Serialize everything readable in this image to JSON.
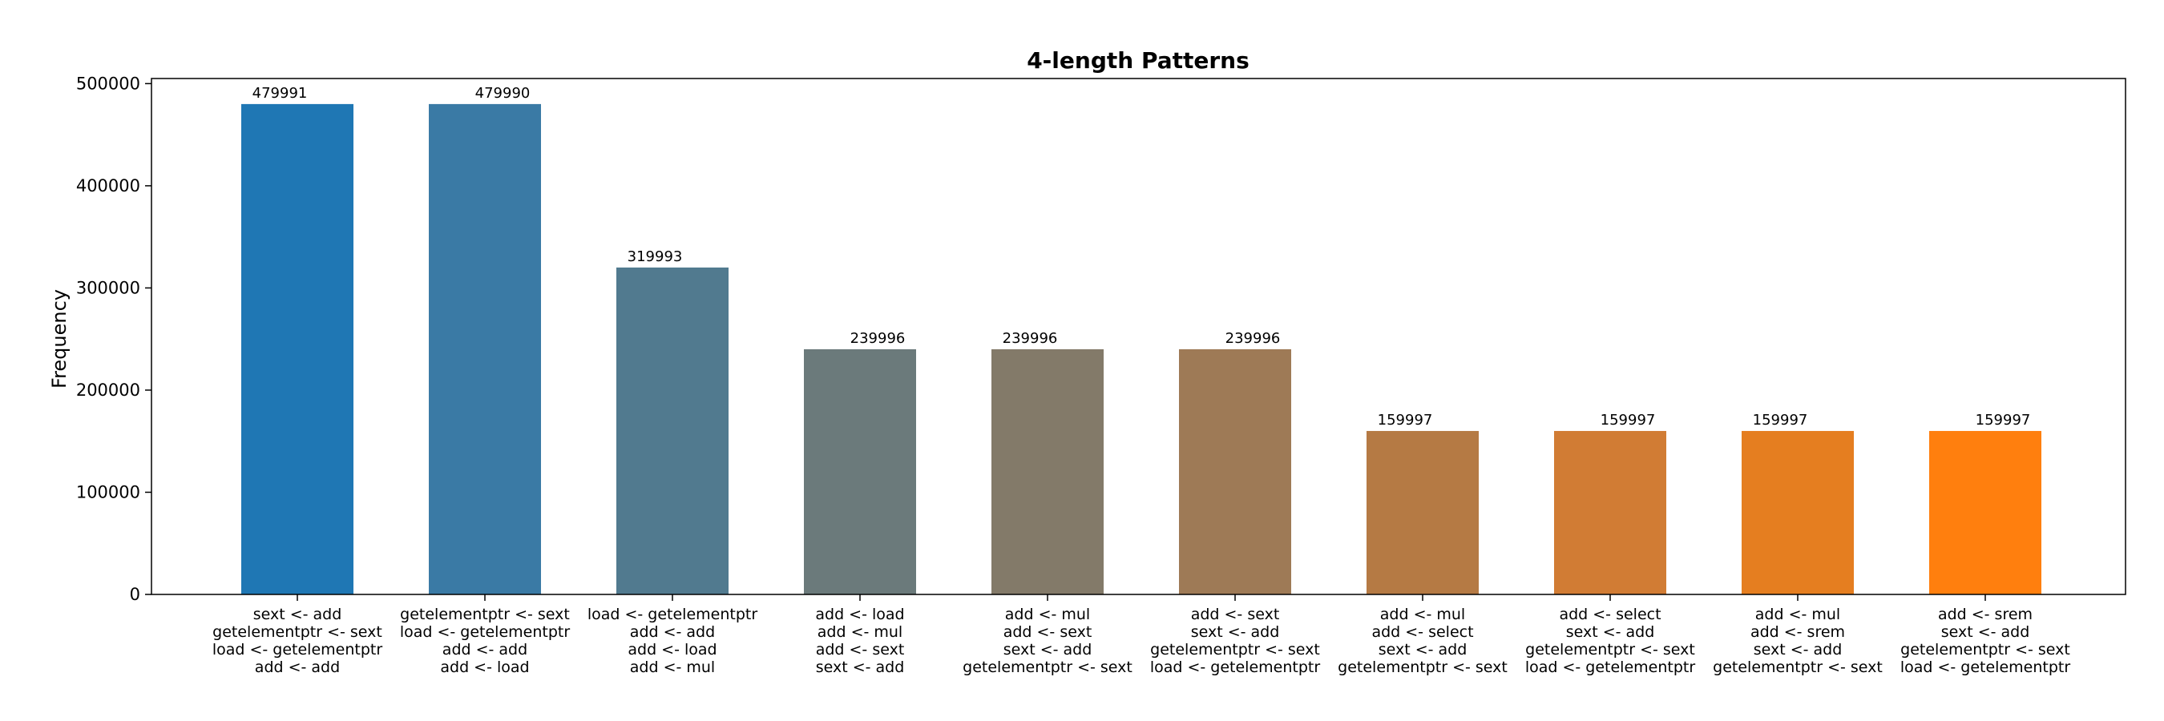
{
  "chart_data": {
    "type": "bar",
    "title": "4-length Patterns",
    "xlabel": "",
    "ylabel": "Frequency",
    "ylim": [
      0,
      505000
    ],
    "yticks": [
      0,
      100000,
      200000,
      300000,
      400000,
      500000
    ],
    "ytick_labels": [
      "0",
      "100000",
      "200000",
      "300000",
      "400000",
      "500000"
    ],
    "grid": false,
    "categories": [
      [
        "sext <- add",
        "getelementptr <- sext",
        "load <- getelementptr",
        "add <- add"
      ],
      [
        "getelementptr <- sext",
        "load <- getelementptr",
        "add <- add",
        "add <- load"
      ],
      [
        "load <- getelementptr",
        "add <- add",
        "add <- load",
        "add <- mul"
      ],
      [
        "add <- load",
        "add <- mul",
        "add <- sext",
        "sext <- add"
      ],
      [
        "add <- mul",
        "add <- sext",
        "sext <- add",
        "getelementptr <- sext"
      ],
      [
        "add <- sext",
        "sext <- add",
        "getelementptr <- sext",
        "load <- getelementptr"
      ],
      [
        "add <- mul",
        "add <- select",
        "sext <- add",
        "getelementptr <- sext"
      ],
      [
        "add <- select",
        "sext <- add",
        "getelementptr <- sext",
        "load <- getelementptr"
      ],
      [
        "add <- mul",
        "add <- srem",
        "sext <- add",
        "getelementptr <- sext"
      ],
      [
        "add <- srem",
        "sext <- add",
        "getelementptr <- sext",
        "load <- getelementptr"
      ]
    ],
    "values": [
      479991,
      479990,
      319993,
      239996,
      239996,
      239996,
      159997,
      159997,
      159997,
      159997
    ],
    "data_labels": [
      "479991",
      "479990",
      "319993",
      "239996",
      "239996",
      "239996",
      "159997",
      "159997",
      "159997",
      "159997"
    ],
    "colors": [
      "#1f77b4",
      "#3a7aa5",
      "#517a8f",
      "#6b7a7b",
      "#837a69",
      "#9e7a56",
      "#b57a44",
      "#d17c34",
      "#e57e20",
      "#ff7f0e"
    ]
  }
}
